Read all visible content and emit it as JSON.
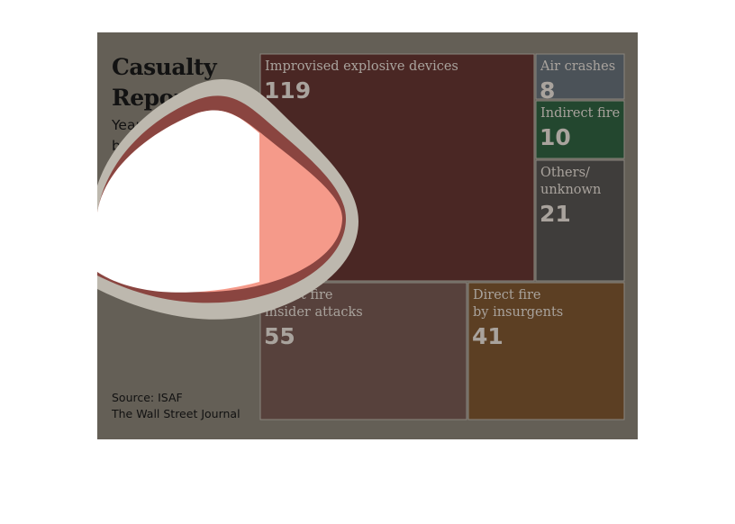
{
  "title": "Casualty Report",
  "subtitle": "Year-to-date battlefield deaths of coalition troops in Afghanistan, by cause",
  "source": [
    "Source: ISAF",
    "The Wall Street Journal"
  ],
  "colors": {
    "panel_background": "#645f56",
    "text": "#121212",
    "cell_text": "#a9a39d",
    "cell_border": "#8a857d",
    "highlight_fill": "#f59a8a"
  },
  "chart_data": {
    "type": "treemap",
    "title": "Casualty Report",
    "subtitle": "Year-to-date battlefield deaths of coalition troops in Afghanistan, by cause",
    "categories": [
      {
        "label_lines": [
          "Improvised explosive devices"
        ],
        "value": 119,
        "color": "#4a2724"
      },
      {
        "label_lines": [
          "Air crashes"
        ],
        "value": 8,
        "color": "#4b5258"
      },
      {
        "label_lines": [
          "Indirect fire"
        ],
        "value": 10,
        "color": "#23472f"
      },
      {
        "label_lines": [
          "Others/",
          "unknown"
        ],
        "value": 21,
        "color": "#3f3d3b"
      },
      {
        "label_lines": [
          "Direct fire",
          "insider attacks"
        ],
        "value": 55,
        "color": "#57413c"
      },
      {
        "label_lines": [
          "Direct fire",
          "by insurgents"
        ],
        "value": 41,
        "color": "#5c3f23"
      }
    ]
  }
}
